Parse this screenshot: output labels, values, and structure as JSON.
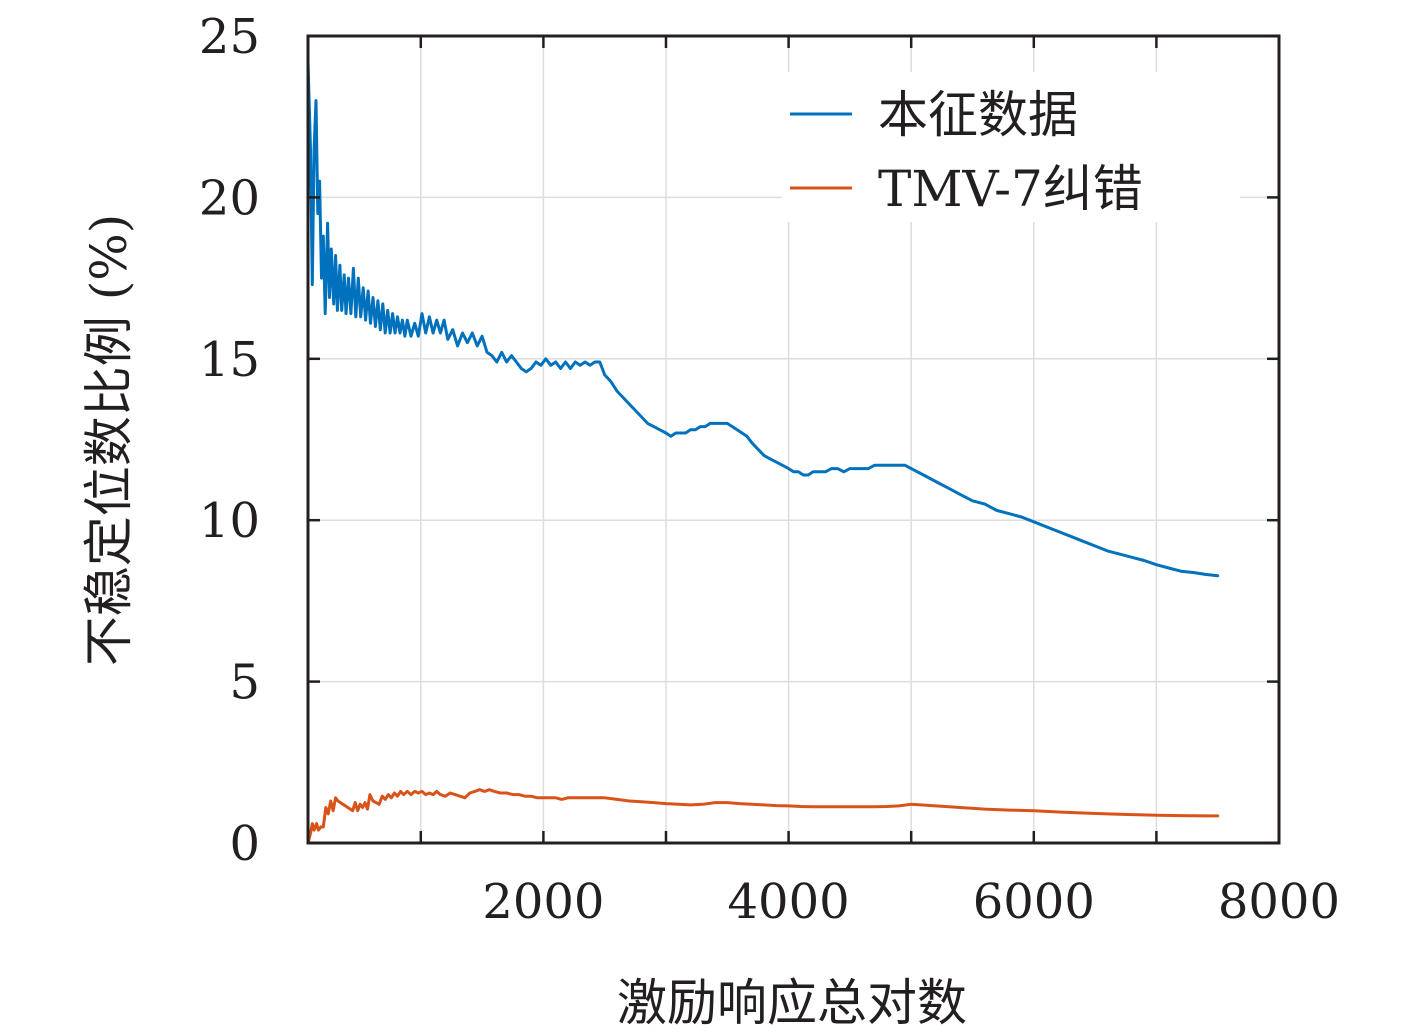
{
  "chart_data": {
    "type": "line",
    "xlabel": "激励响应总对数",
    "ylabel": "不稳定位数比例 (%)",
    "xlim": [
      80,
      8000
    ],
    "ylim": [
      0,
      25
    ],
    "xticks": [
      2000,
      4000,
      6000,
      8000
    ],
    "xtick_labels": [
      "2000",
      "4000",
      "6000",
      "8000"
    ],
    "xminor_ticks": [
      1000,
      3000,
      5000,
      7000
    ],
    "yticks": [
      0,
      5,
      10,
      15,
      20,
      25
    ],
    "ytick_labels": [
      "0",
      "5",
      "10",
      "15",
      "20",
      "25"
    ],
    "grid": true,
    "legend_position": "top-right",
    "colors": {
      "series_1": "#0072bd",
      "series_2": "#d95319",
      "axis": "#231f20",
      "grid": "#dddddd"
    },
    "series": [
      {
        "name": "本征数据",
        "color": "#0072bd",
        "points": [
          [
            80,
            24.2
          ],
          [
            100,
            21.5
          ],
          [
            115,
            17.3
          ],
          [
            130,
            21.5
          ],
          [
            145,
            23.0
          ],
          [
            160,
            19.5
          ],
          [
            175,
            20.5
          ],
          [
            190,
            17.5
          ],
          [
            205,
            18.8
          ],
          [
            220,
            16.4
          ],
          [
            240,
            19.2
          ],
          [
            255,
            16.9
          ],
          [
            270,
            18.4
          ],
          [
            290,
            16.7
          ],
          [
            305,
            18.2
          ],
          [
            320,
            16.5
          ],
          [
            340,
            17.9
          ],
          [
            355,
            16.5
          ],
          [
            375,
            17.6
          ],
          [
            390,
            16.4
          ],
          [
            410,
            17.5
          ],
          [
            430,
            16.4
          ],
          [
            450,
            17.8
          ],
          [
            470,
            16.3
          ],
          [
            490,
            17.5
          ],
          [
            510,
            16.3
          ],
          [
            530,
            17.2
          ],
          [
            550,
            16.2
          ],
          [
            570,
            17.1
          ],
          [
            590,
            16.1
          ],
          [
            610,
            16.9
          ],
          [
            630,
            16.0
          ],
          [
            650,
            16.8
          ],
          [
            670,
            15.9
          ],
          [
            690,
            16.7
          ],
          [
            710,
            15.8
          ],
          [
            730,
            16.5
          ],
          [
            750,
            15.8
          ],
          [
            770,
            16.4
          ],
          [
            790,
            15.8
          ],
          [
            810,
            16.3
          ],
          [
            830,
            15.8
          ],
          [
            850,
            16.2
          ],
          [
            870,
            15.7
          ],
          [
            890,
            16.2
          ],
          [
            920,
            15.7
          ],
          [
            950,
            16.1
          ],
          [
            980,
            15.7
          ],
          [
            1010,
            16.4
          ],
          [
            1040,
            15.8
          ],
          [
            1070,
            16.3
          ],
          [
            1100,
            15.8
          ],
          [
            1130,
            16.2
          ],
          [
            1160,
            15.8
          ],
          [
            1190,
            16.2
          ],
          [
            1220,
            15.6
          ],
          [
            1260,
            15.9
          ],
          [
            1300,
            15.4
          ],
          [
            1340,
            15.8
          ],
          [
            1380,
            15.5
          ],
          [
            1420,
            15.8
          ],
          [
            1460,
            15.4
          ],
          [
            1500,
            15.7
          ],
          [
            1540,
            15.2
          ],
          [
            1580,
            15.1
          ],
          [
            1620,
            14.9
          ],
          [
            1660,
            15.2
          ],
          [
            1700,
            14.9
          ],
          [
            1740,
            15.1
          ],
          [
            1780,
            14.9
          ],
          [
            1820,
            14.7
          ],
          [
            1860,
            14.6
          ],
          [
            1900,
            14.7
          ],
          [
            1940,
            14.9
          ],
          [
            1980,
            14.8
          ],
          [
            2020,
            15.0
          ],
          [
            2060,
            14.8
          ],
          [
            2100,
            14.9
          ],
          [
            2140,
            14.7
          ],
          [
            2180,
            14.9
          ],
          [
            2220,
            14.7
          ],
          [
            2260,
            14.9
          ],
          [
            2300,
            14.8
          ],
          [
            2340,
            14.9
          ],
          [
            2380,
            14.8
          ],
          [
            2420,
            14.9
          ],
          [
            2460,
            14.9
          ],
          [
            2500,
            14.5
          ],
          [
            2550,
            14.3
          ],
          [
            2600,
            14.0
          ],
          [
            2650,
            13.8
          ],
          [
            2700,
            13.6
          ],
          [
            2750,
            13.4
          ],
          [
            2800,
            13.2
          ],
          [
            2850,
            13.0
          ],
          [
            2900,
            12.9
          ],
          [
            2950,
            12.8
          ],
          [
            3000,
            12.7
          ],
          [
            3040,
            12.6
          ],
          [
            3080,
            12.7
          ],
          [
            3120,
            12.7
          ],
          [
            3160,
            12.7
          ],
          [
            3200,
            12.8
          ],
          [
            3240,
            12.8
          ],
          [
            3280,
            12.9
          ],
          [
            3320,
            12.9
          ],
          [
            3360,
            13.0
          ],
          [
            3400,
            13.0
          ],
          [
            3450,
            13.0
          ],
          [
            3500,
            13.0
          ],
          [
            3540,
            12.9
          ],
          [
            3580,
            12.8
          ],
          [
            3620,
            12.7
          ],
          [
            3660,
            12.6
          ],
          [
            3700,
            12.4
          ],
          [
            3750,
            12.2
          ],
          [
            3800,
            12.0
          ],
          [
            3850,
            11.9
          ],
          [
            3900,
            11.8
          ],
          [
            3950,
            11.7
          ],
          [
            4000,
            11.6
          ],
          [
            4040,
            11.5
          ],
          [
            4080,
            11.5
          ],
          [
            4120,
            11.4
          ],
          [
            4160,
            11.4
          ],
          [
            4200,
            11.5
          ],
          [
            4250,
            11.5
          ],
          [
            4300,
            11.5
          ],
          [
            4350,
            11.6
          ],
          [
            4400,
            11.6
          ],
          [
            4450,
            11.5
          ],
          [
            4500,
            11.6
          ],
          [
            4550,
            11.6
          ],
          [
            4600,
            11.6
          ],
          [
            4650,
            11.6
          ],
          [
            4700,
            11.7
          ],
          [
            4750,
            11.7
          ],
          [
            4800,
            11.7
          ],
          [
            4850,
            11.7
          ],
          [
            4900,
            11.7
          ],
          [
            4950,
            11.7
          ],
          [
            5000,
            11.6
          ],
          [
            5100,
            11.4
          ],
          [
            5200,
            11.2
          ],
          [
            5300,
            11.0
          ],
          [
            5400,
            10.8
          ],
          [
            5500,
            10.6
          ],
          [
            5600,
            10.5
          ],
          [
            5700,
            10.3
          ],
          [
            5800,
            10.2
          ],
          [
            5900,
            10.1
          ],
          [
            6000,
            9.95
          ],
          [
            6100,
            9.8
          ],
          [
            6200,
            9.65
          ],
          [
            6300,
            9.5
          ],
          [
            6400,
            9.35
          ],
          [
            6500,
            9.2
          ],
          [
            6600,
            9.05
          ],
          [
            6700,
            8.95
          ],
          [
            6800,
            8.85
          ],
          [
            6900,
            8.75
          ],
          [
            7000,
            8.62
          ],
          [
            7100,
            8.52
          ],
          [
            7200,
            8.42
          ],
          [
            7300,
            8.38
          ],
          [
            7400,
            8.32
          ],
          [
            7500,
            8.28
          ]
        ]
      },
      {
        "name": "TMV-7纠错",
        "color": "#d95319",
        "points": [
          [
            80,
            0.0
          ],
          [
            100,
            0.3
          ],
          [
            115,
            0.6
          ],
          [
            130,
            0.4
          ],
          [
            150,
            0.6
          ],
          [
            165,
            0.4
          ],
          [
            185,
            0.5
          ],
          [
            205,
            0.5
          ],
          [
            225,
            1.1
          ],
          [
            245,
            0.9
          ],
          [
            265,
            1.3
          ],
          [
            285,
            1.0
          ],
          [
            305,
            1.4
          ],
          [
            325,
            1.3
          ],
          [
            345,
            1.25
          ],
          [
            365,
            1.2
          ],
          [
            385,
            1.15
          ],
          [
            405,
            1.1
          ],
          [
            425,
            1.05
          ],
          [
            445,
            1.0
          ],
          [
            465,
            1.25
          ],
          [
            485,
            1.0
          ],
          [
            505,
            1.2
          ],
          [
            525,
            1.1
          ],
          [
            545,
            1.25
          ],
          [
            565,
            1.05
          ],
          [
            585,
            1.5
          ],
          [
            610,
            1.3
          ],
          [
            635,
            1.25
          ],
          [
            660,
            1.2
          ],
          [
            685,
            1.45
          ],
          [
            710,
            1.35
          ],
          [
            735,
            1.5
          ],
          [
            760,
            1.4
          ],
          [
            785,
            1.55
          ],
          [
            810,
            1.45
          ],
          [
            835,
            1.6
          ],
          [
            860,
            1.5
          ],
          [
            890,
            1.6
          ],
          [
            920,
            1.5
          ],
          [
            950,
            1.6
          ],
          [
            980,
            1.55
          ],
          [
            1010,
            1.6
          ],
          [
            1040,
            1.5
          ],
          [
            1070,
            1.55
          ],
          [
            1100,
            1.5
          ],
          [
            1130,
            1.6
          ],
          [
            1160,
            1.5
          ],
          [
            1200,
            1.45
          ],
          [
            1240,
            1.55
          ],
          [
            1280,
            1.5
          ],
          [
            1320,
            1.45
          ],
          [
            1360,
            1.4
          ],
          [
            1400,
            1.55
          ],
          [
            1440,
            1.6
          ],
          [
            1480,
            1.65
          ],
          [
            1520,
            1.6
          ],
          [
            1560,
            1.65
          ],
          [
            1600,
            1.6
          ],
          [
            1650,
            1.55
          ],
          [
            1700,
            1.55
          ],
          [
            1750,
            1.5
          ],
          [
            1800,
            1.5
          ],
          [
            1850,
            1.45
          ],
          [
            1900,
            1.45
          ],
          [
            1950,
            1.4
          ],
          [
            2000,
            1.4
          ],
          [
            2050,
            1.4
          ],
          [
            2100,
            1.4
          ],
          [
            2150,
            1.35
          ],
          [
            2200,
            1.4
          ],
          [
            2250,
            1.4
          ],
          [
            2300,
            1.4
          ],
          [
            2350,
            1.4
          ],
          [
            2400,
            1.4
          ],
          [
            2450,
            1.4
          ],
          [
            2500,
            1.4
          ],
          [
            2600,
            1.35
          ],
          [
            2700,
            1.3
          ],
          [
            2800,
            1.28
          ],
          [
            2900,
            1.25
          ],
          [
            3000,
            1.22
          ],
          [
            3100,
            1.2
          ],
          [
            3200,
            1.18
          ],
          [
            3300,
            1.2
          ],
          [
            3400,
            1.25
          ],
          [
            3500,
            1.25
          ],
          [
            3600,
            1.22
          ],
          [
            3700,
            1.2
          ],
          [
            3800,
            1.18
          ],
          [
            3900,
            1.16
          ],
          [
            4000,
            1.15
          ],
          [
            4100,
            1.13
          ],
          [
            4200,
            1.12
          ],
          [
            4300,
            1.12
          ],
          [
            4400,
            1.12
          ],
          [
            4500,
            1.12
          ],
          [
            4600,
            1.12
          ],
          [
            4700,
            1.12
          ],
          [
            4800,
            1.13
          ],
          [
            4900,
            1.15
          ],
          [
            5000,
            1.2
          ],
          [
            5200,
            1.15
          ],
          [
            5400,
            1.1
          ],
          [
            5600,
            1.05
          ],
          [
            5800,
            1.02
          ],
          [
            6000,
            1.0
          ],
          [
            6200,
            0.96
          ],
          [
            6400,
            0.93
          ],
          [
            6600,
            0.9
          ],
          [
            6800,
            0.88
          ],
          [
            7000,
            0.86
          ],
          [
            7200,
            0.85
          ],
          [
            7400,
            0.84
          ],
          [
            7500,
            0.84
          ]
        ]
      }
    ]
  }
}
